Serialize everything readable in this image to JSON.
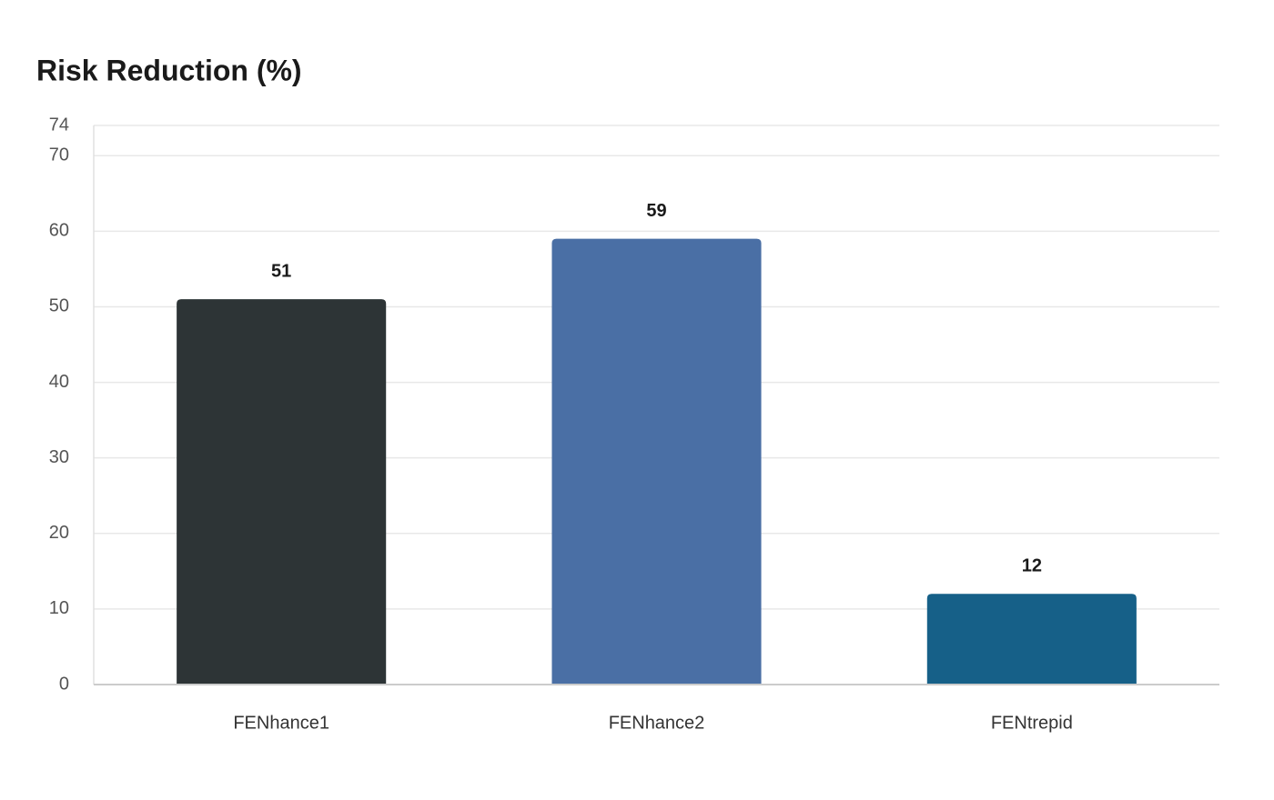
{
  "chart_data": {
    "type": "bar",
    "title": "Risk Reduction (%)",
    "categories": [
      "FENhance1",
      "FENhance2",
      "FENtrepid"
    ],
    "values": [
      51,
      59,
      12
    ],
    "colors": [
      "#2d3436",
      "#4a6fa5",
      "#166088"
    ],
    "ylim": [
      0,
      74
    ],
    "yticks": [
      0,
      10,
      20,
      30,
      40,
      50,
      60,
      70,
      74
    ],
    "grid": true
  }
}
